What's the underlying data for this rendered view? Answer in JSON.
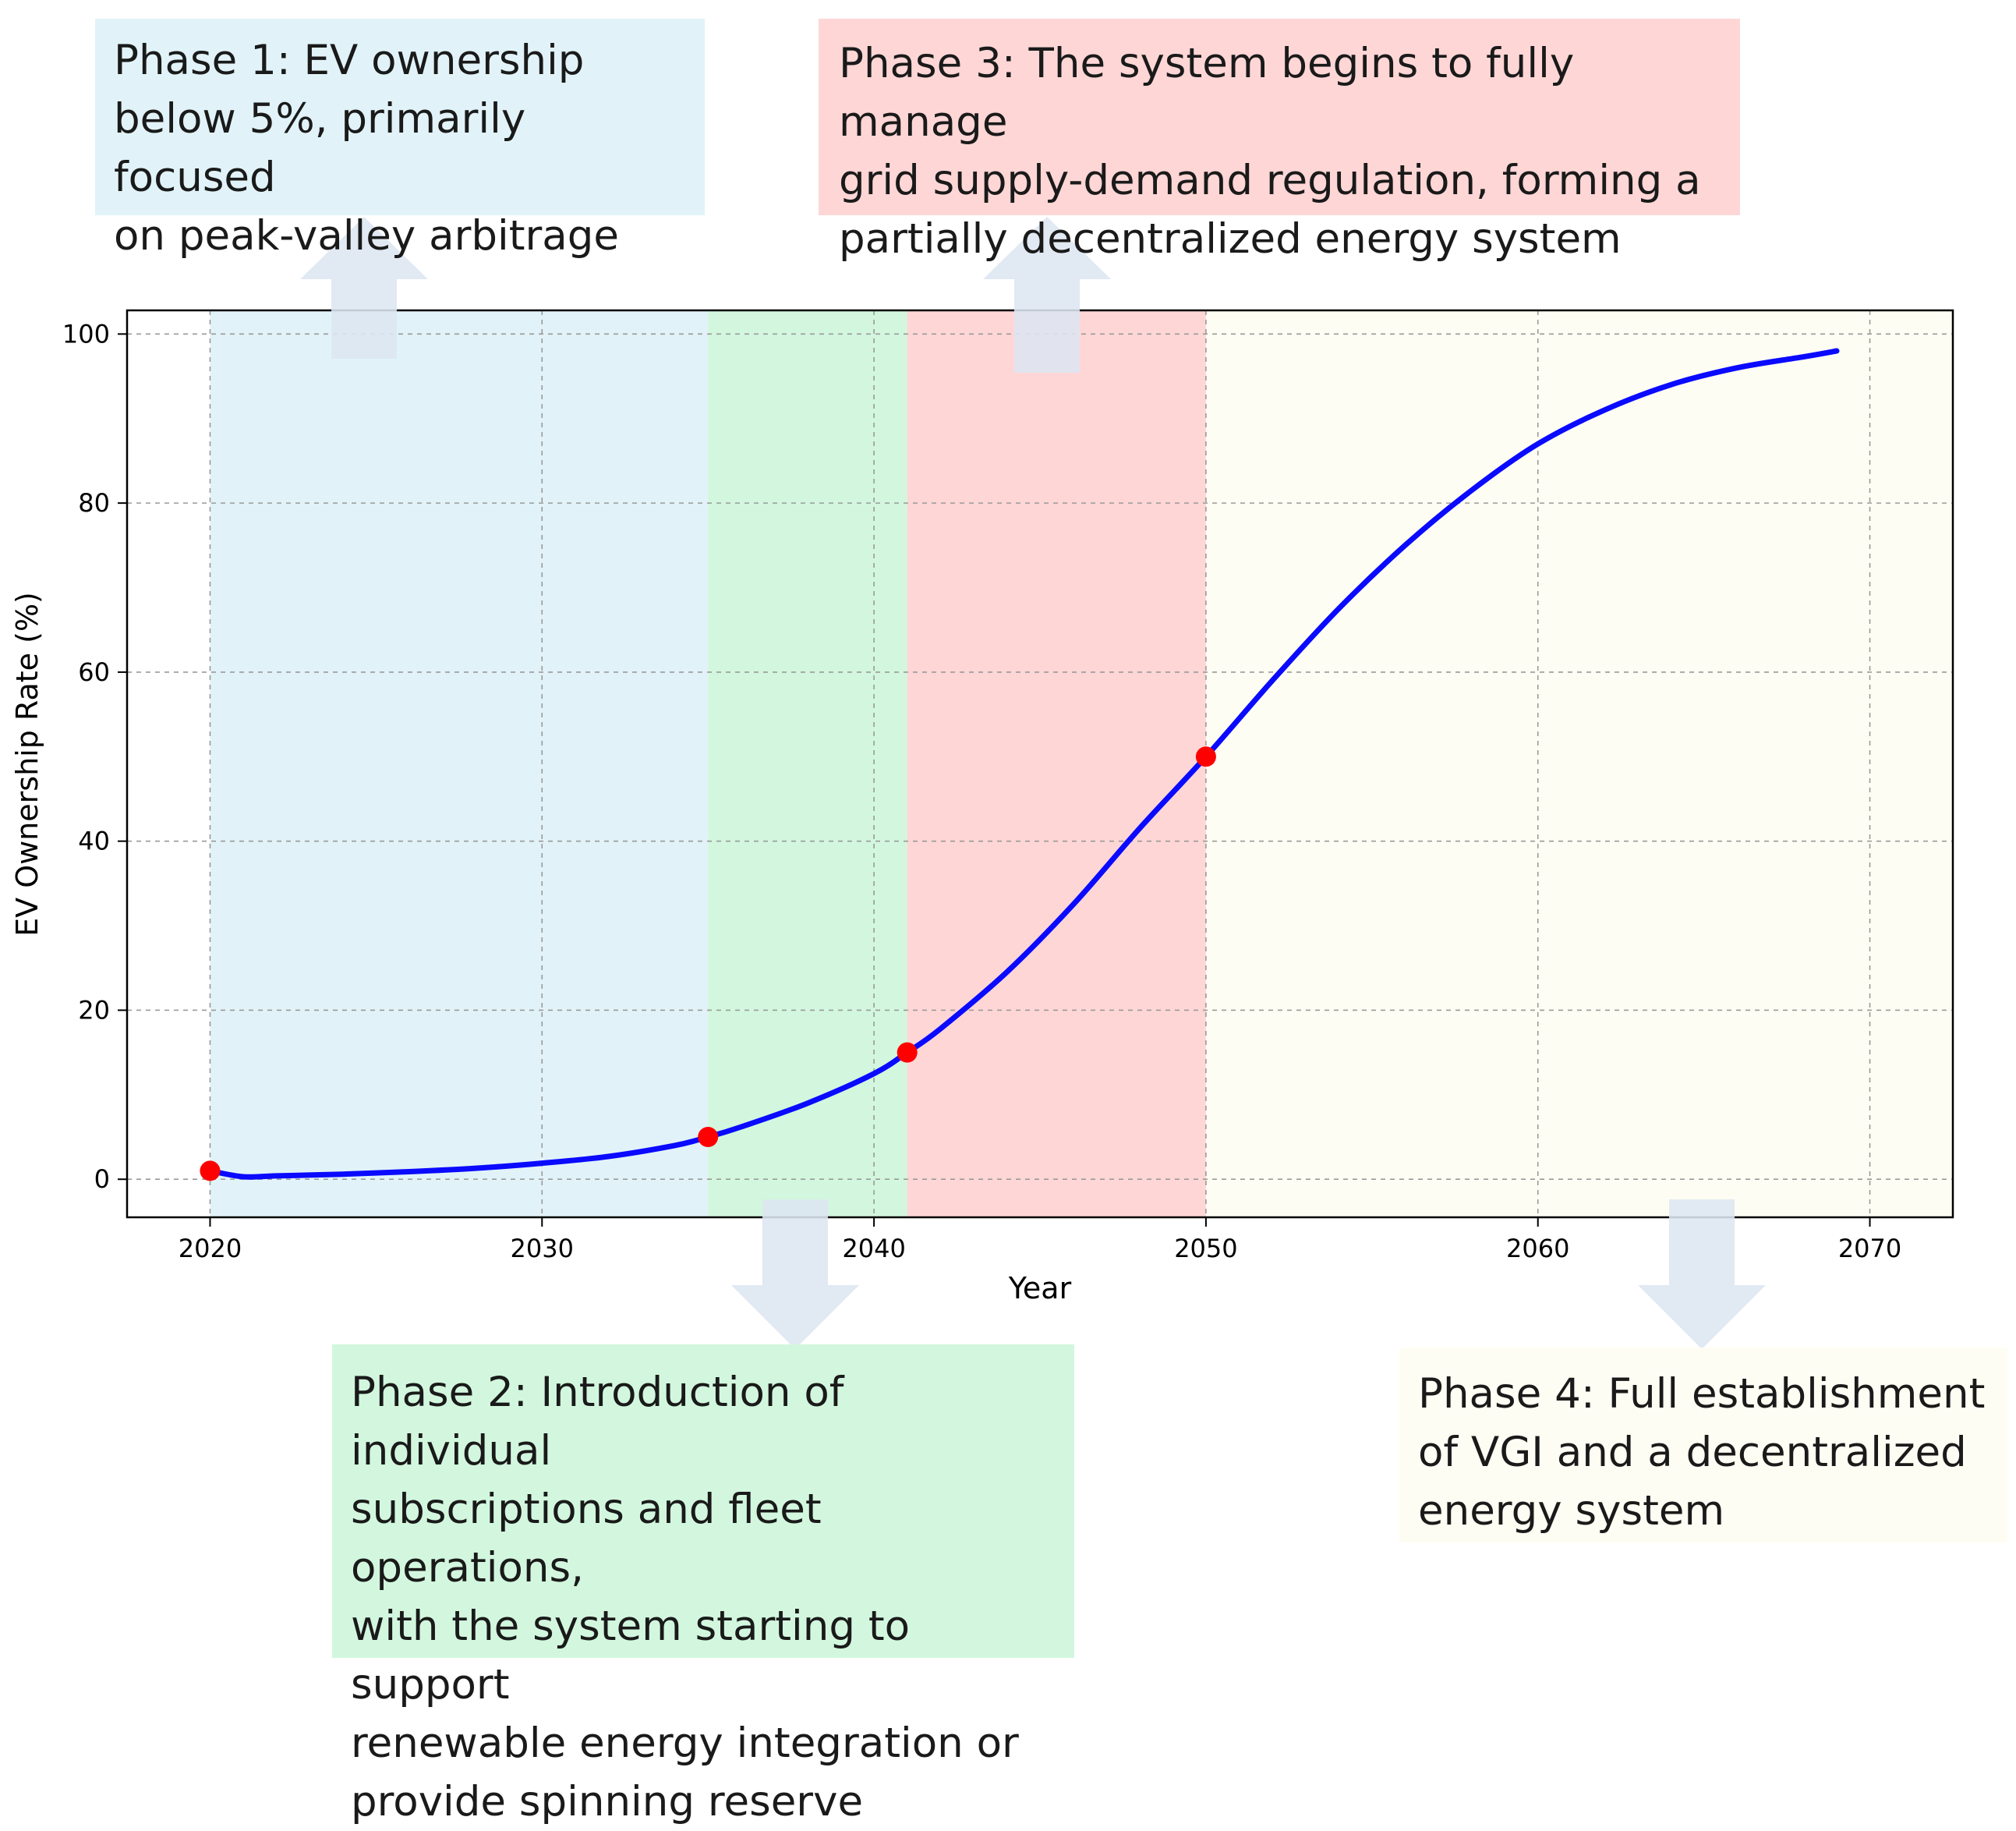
{
  "chart_data": {
    "type": "line",
    "title": "",
    "xlabel": "Year",
    "ylabel": "EV Ownership Rate (%)",
    "xlim": [
      2017.5,
      2072.5
    ],
    "ylim": [
      -4.5,
      102.8
    ],
    "x_ticks": [
      2020,
      2030,
      2040,
      2050,
      2060,
      2070
    ],
    "y_ticks": [
      0,
      20,
      40,
      60,
      80,
      100
    ],
    "grid": true,
    "series": [
      {
        "color": "#0a0aff",
        "x": [
          2020,
          2021,
          2022,
          2024,
          2026,
          2028,
          2030,
          2032,
          2034,
          2035,
          2036,
          2038,
          2040,
          2041,
          2042,
          2044,
          2046,
          2048,
          2050,
          2052,
          2054,
          2056,
          2058,
          2060,
          2062,
          2064,
          2066,
          2068,
          2069
        ],
        "y": [
          1.0,
          0.3,
          0.4,
          0.6,
          0.9,
          1.3,
          1.9,
          2.7,
          4.0,
          5.0,
          6.2,
          9.0,
          12.5,
          15.0,
          17.8,
          24.5,
          32.5,
          41.5,
          50.0,
          59.0,
          67.5,
          75.0,
          81.5,
          87.0,
          91.0,
          94.0,
          96.0,
          97.3,
          98.0
        ]
      }
    ],
    "markers": {
      "color": "#ff0000",
      "x": [
        2020,
        2035,
        2041,
        2050
      ],
      "y": [
        1,
        5,
        15,
        50
      ]
    },
    "phase_bands": [
      {
        "x_start": 2020,
        "x_end": 2035,
        "color": "#e1f3f8"
      },
      {
        "x_start": 2035,
        "x_end": 2041,
        "color": "#d2f7de"
      },
      {
        "x_start": 2041,
        "x_end": 2050,
        "color": "#ffd6d6"
      },
      {
        "x_start": 2050,
        "x_end": 2072.5,
        "color": "#fefdf3"
      }
    ]
  },
  "callouts": [
    {
      "lines": [
        "Phase 1: EV ownership",
        "below 5%, primarily focused",
        "on peak-valley arbitrage"
      ],
      "color": "#e1f3f8"
    },
    {
      "lines": [
        "Phase 2: Introduction of individual",
        "subscriptions and fleet operations,",
        "with the system starting to support",
        "renewable energy integration or",
        "provide spinning reserve"
      ],
      "color": "#d2f7de"
    },
    {
      "lines": [
        "Phase 3: The system begins to fully manage",
        "grid supply-demand regulation, forming a",
        "partially decentralized energy system"
      ],
      "color": "#ffd6d6"
    },
    {
      "lines": [
        "Phase 4: Full establishment",
        "of VGI and a decentralized",
        "energy system"
      ],
      "color": "#fefdf3"
    }
  ],
  "arrow_color": "#dde6f1"
}
